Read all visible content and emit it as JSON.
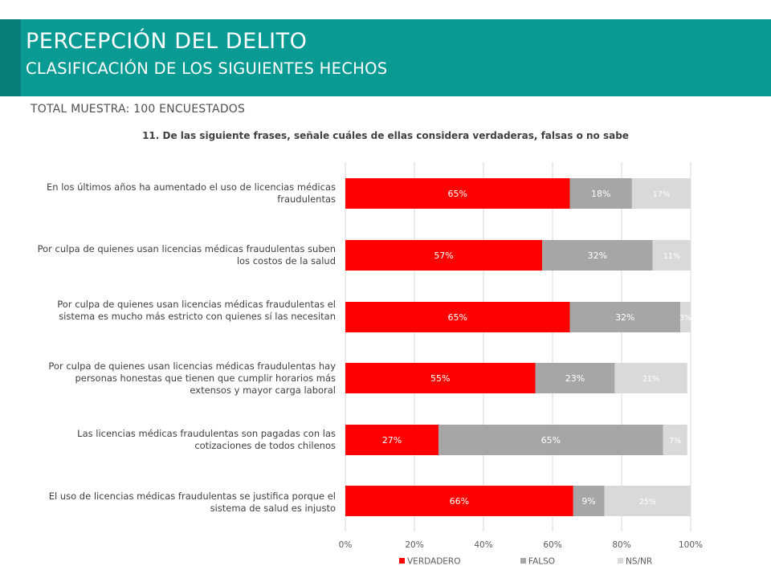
{
  "header": {
    "title": "PERCEPCIÓN DEL DELITO",
    "subtitle": "CLASIFICACIÓN DE LOS SIGUIENTES HECHOS",
    "sample": "TOTAL MUESTRA: 100 ENCUESTADOS",
    "question": "11. De las siguiente frases, señale cuáles de ellas considera verdaderas, falsas o no sabe"
  },
  "colors": {
    "header_band": "#0a9a94",
    "verdadero": "#ff0000",
    "falso": "#a6a6a6",
    "nsnr": "#d9d9d9"
  },
  "chart_data": {
    "type": "bar",
    "orientation": "horizontal",
    "stacked": true,
    "categories": [
      "En los últimos años ha aumentado el uso de licencias médicas fraudulentas",
      "Por culpa de quienes usan licencias médicas fraudulentas suben los costos de la salud",
      "Por culpa de quienes usan licencias médicas fraudulentas el sistema es mucho más estricto con quienes sí las necesitan",
      "Por culpa de quienes usan licencias médicas fraudulentas hay personas honestas que tienen que cumplir horarios más extensos y mayor carga laboral",
      "Las licencias médicas fraudulentas son pagadas con las cotizaciones de todos chilenos",
      "El uso de licencias médicas fraudulentas se justifica porque el sistema de salud es injusto"
    ],
    "series": [
      {
        "name": "VERDADERO",
        "values": [
          65,
          57,
          65,
          55,
          27,
          66
        ],
        "labels": [
          "65%",
          "57%",
          "65%",
          "55%",
          "27%",
          "66%"
        ]
      },
      {
        "name": "FALSO",
        "values": [
          18,
          32,
          32,
          23,
          65,
          9
        ],
        "labels": [
          "18%",
          "32%",
          "32%",
          "23%",
          "65%",
          "9%"
        ]
      },
      {
        "name": "NS/NR",
        "values": [
          17,
          11,
          3,
          21,
          7,
          25
        ],
        "labels": [
          "17%",
          "11%",
          "3%",
          "21%",
          "7%",
          "25%"
        ]
      }
    ],
    "xlim": [
      0,
      100
    ],
    "xticks": [
      "0%",
      "20%",
      "40%",
      "60%",
      "80%",
      "100%"
    ],
    "grid": true,
    "legend_position": "bottom"
  }
}
